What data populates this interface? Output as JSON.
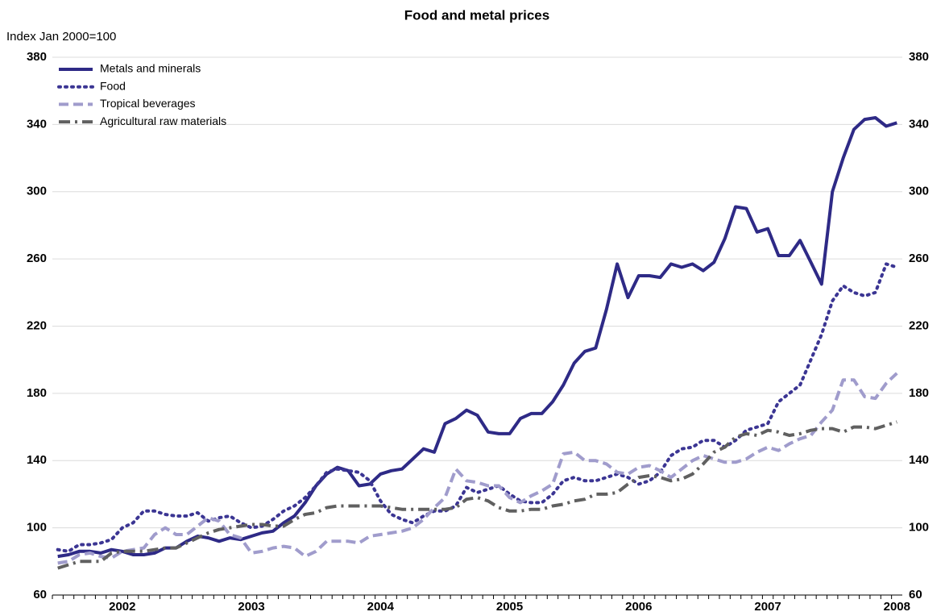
{
  "chart_data": {
    "type": "line",
    "title": "Food and metal prices",
    "y_label": "Index Jan 2000=100",
    "categories": [
      null,
      null,
      null,
      null,
      null,
      null,
      "2002",
      null,
      null,
      null,
      null,
      null,
      null,
      null,
      null,
      null,
      null,
      null,
      "2003",
      null,
      null,
      null,
      null,
      null,
      null,
      null,
      null,
      null,
      null,
      null,
      "2004",
      null,
      null,
      null,
      null,
      null,
      null,
      null,
      null,
      null,
      null,
      null,
      "2005",
      null,
      null,
      null,
      null,
      null,
      null,
      null,
      null,
      null,
      null,
      null,
      "2006",
      null,
      null,
      null,
      null,
      null,
      null,
      null,
      null,
      null,
      null,
      null,
      "2007",
      null,
      null,
      null,
      null,
      null,
      null,
      null,
      null,
      null,
      null,
      null,
      "2008"
    ],
    "series": [
      {
        "name": "Metals and minerals",
        "color": "#2e2a86",
        "style": "solid",
        "values": [
          83,
          84,
          86,
          86,
          85,
          87,
          86,
          84,
          84,
          85,
          88,
          88,
          92,
          95,
          94,
          92,
          94,
          93,
          95,
          97,
          98,
          103,
          107,
          115,
          125,
          132,
          136,
          134,
          125,
          126,
          132,
          134,
          135,
          141,
          147,
          145,
          162,
          165,
          170,
          167,
          157,
          156,
          156,
          165,
          168,
          168,
          175,
          185,
          198,
          205,
          207,
          230,
          257,
          237,
          250,
          250,
          249,
          257,
          255,
          257,
          253,
          258,
          272,
          291,
          290,
          276,
          278,
          262,
          262,
          271,
          258,
          245,
          300,
          320,
          337,
          343,
          344,
          339,
          341
        ]
      },
      {
        "name": "Food",
        "color": "#3b3593",
        "style": "dotted",
        "values": [
          87,
          86,
          90,
          90,
          91,
          93,
          100,
          103,
          110,
          110,
          108,
          107,
          107,
          109,
          104,
          106,
          107,
          103,
          100,
          101,
          105,
          110,
          113,
          118,
          125,
          133,
          135,
          134,
          133,
          128,
          116,
          108,
          105,
          103,
          107,
          110,
          110,
          113,
          124,
          121,
          123,
          125,
          120,
          116,
          115,
          115,
          120,
          128,
          130,
          128,
          128,
          130,
          132,
          130,
          126,
          128,
          133,
          143,
          147,
          148,
          152,
          152,
          148,
          152,
          158,
          160,
          162,
          175,
          180,
          185,
          200,
          215,
          235,
          244,
          240,
          238,
          240,
          257,
          255
        ]
      },
      {
        "name": "Tropical beverages",
        "color": "#a09ccc",
        "style": "dashed",
        "values": [
          79,
          80,
          84,
          85,
          83,
          82,
          86,
          87,
          88,
          96,
          100,
          96,
          96,
          101,
          106,
          104,
          96,
          94,
          85,
          86,
          88,
          89,
          88,
          83,
          86,
          92,
          92,
          92,
          91,
          95,
          96,
          97,
          98,
          100,
          105,
          112,
          118,
          135,
          128,
          127,
          125,
          125,
          118,
          115,
          119,
          122,
          126,
          144,
          145,
          140,
          140,
          138,
          133,
          132,
          136,
          137,
          134,
          130,
          135,
          140,
          143,
          141,
          139,
          139,
          141,
          145,
          148,
          146,
          150,
          153,
          155,
          163,
          170,
          188,
          188,
          178,
          177,
          186,
          192
        ]
      },
      {
        "name": "Agricultural raw materials",
        "color": "#606060",
        "style": "dashdot",
        "values": [
          76,
          78,
          80,
          80,
          80,
          85,
          86,
          86,
          86,
          87,
          88,
          88,
          91,
          94,
          97,
          99,
          100,
          101,
          102,
          102,
          101,
          101,
          105,
          108,
          109,
          112,
          113,
          113,
          113,
          113,
          113,
          112,
          111,
          111,
          111,
          111,
          111,
          112,
          117,
          118,
          116,
          112,
          110,
          110,
          111,
          111,
          113,
          114,
          116,
          117,
          120,
          120,
          121,
          126,
          130,
          131,
          130,
          128,
          129,
          132,
          138,
          145,
          148,
          154,
          156,
          155,
          158,
          157,
          155,
          156,
          158,
          159,
          159,
          157,
          160,
          160,
          159,
          161,
          163
        ]
      }
    ],
    "ylim": [
      60,
      380
    ],
    "yticks": [
      60,
      100,
      140,
      180,
      220,
      260,
      300,
      340,
      380
    ],
    "grid": true,
    "legend": "upper left"
  }
}
